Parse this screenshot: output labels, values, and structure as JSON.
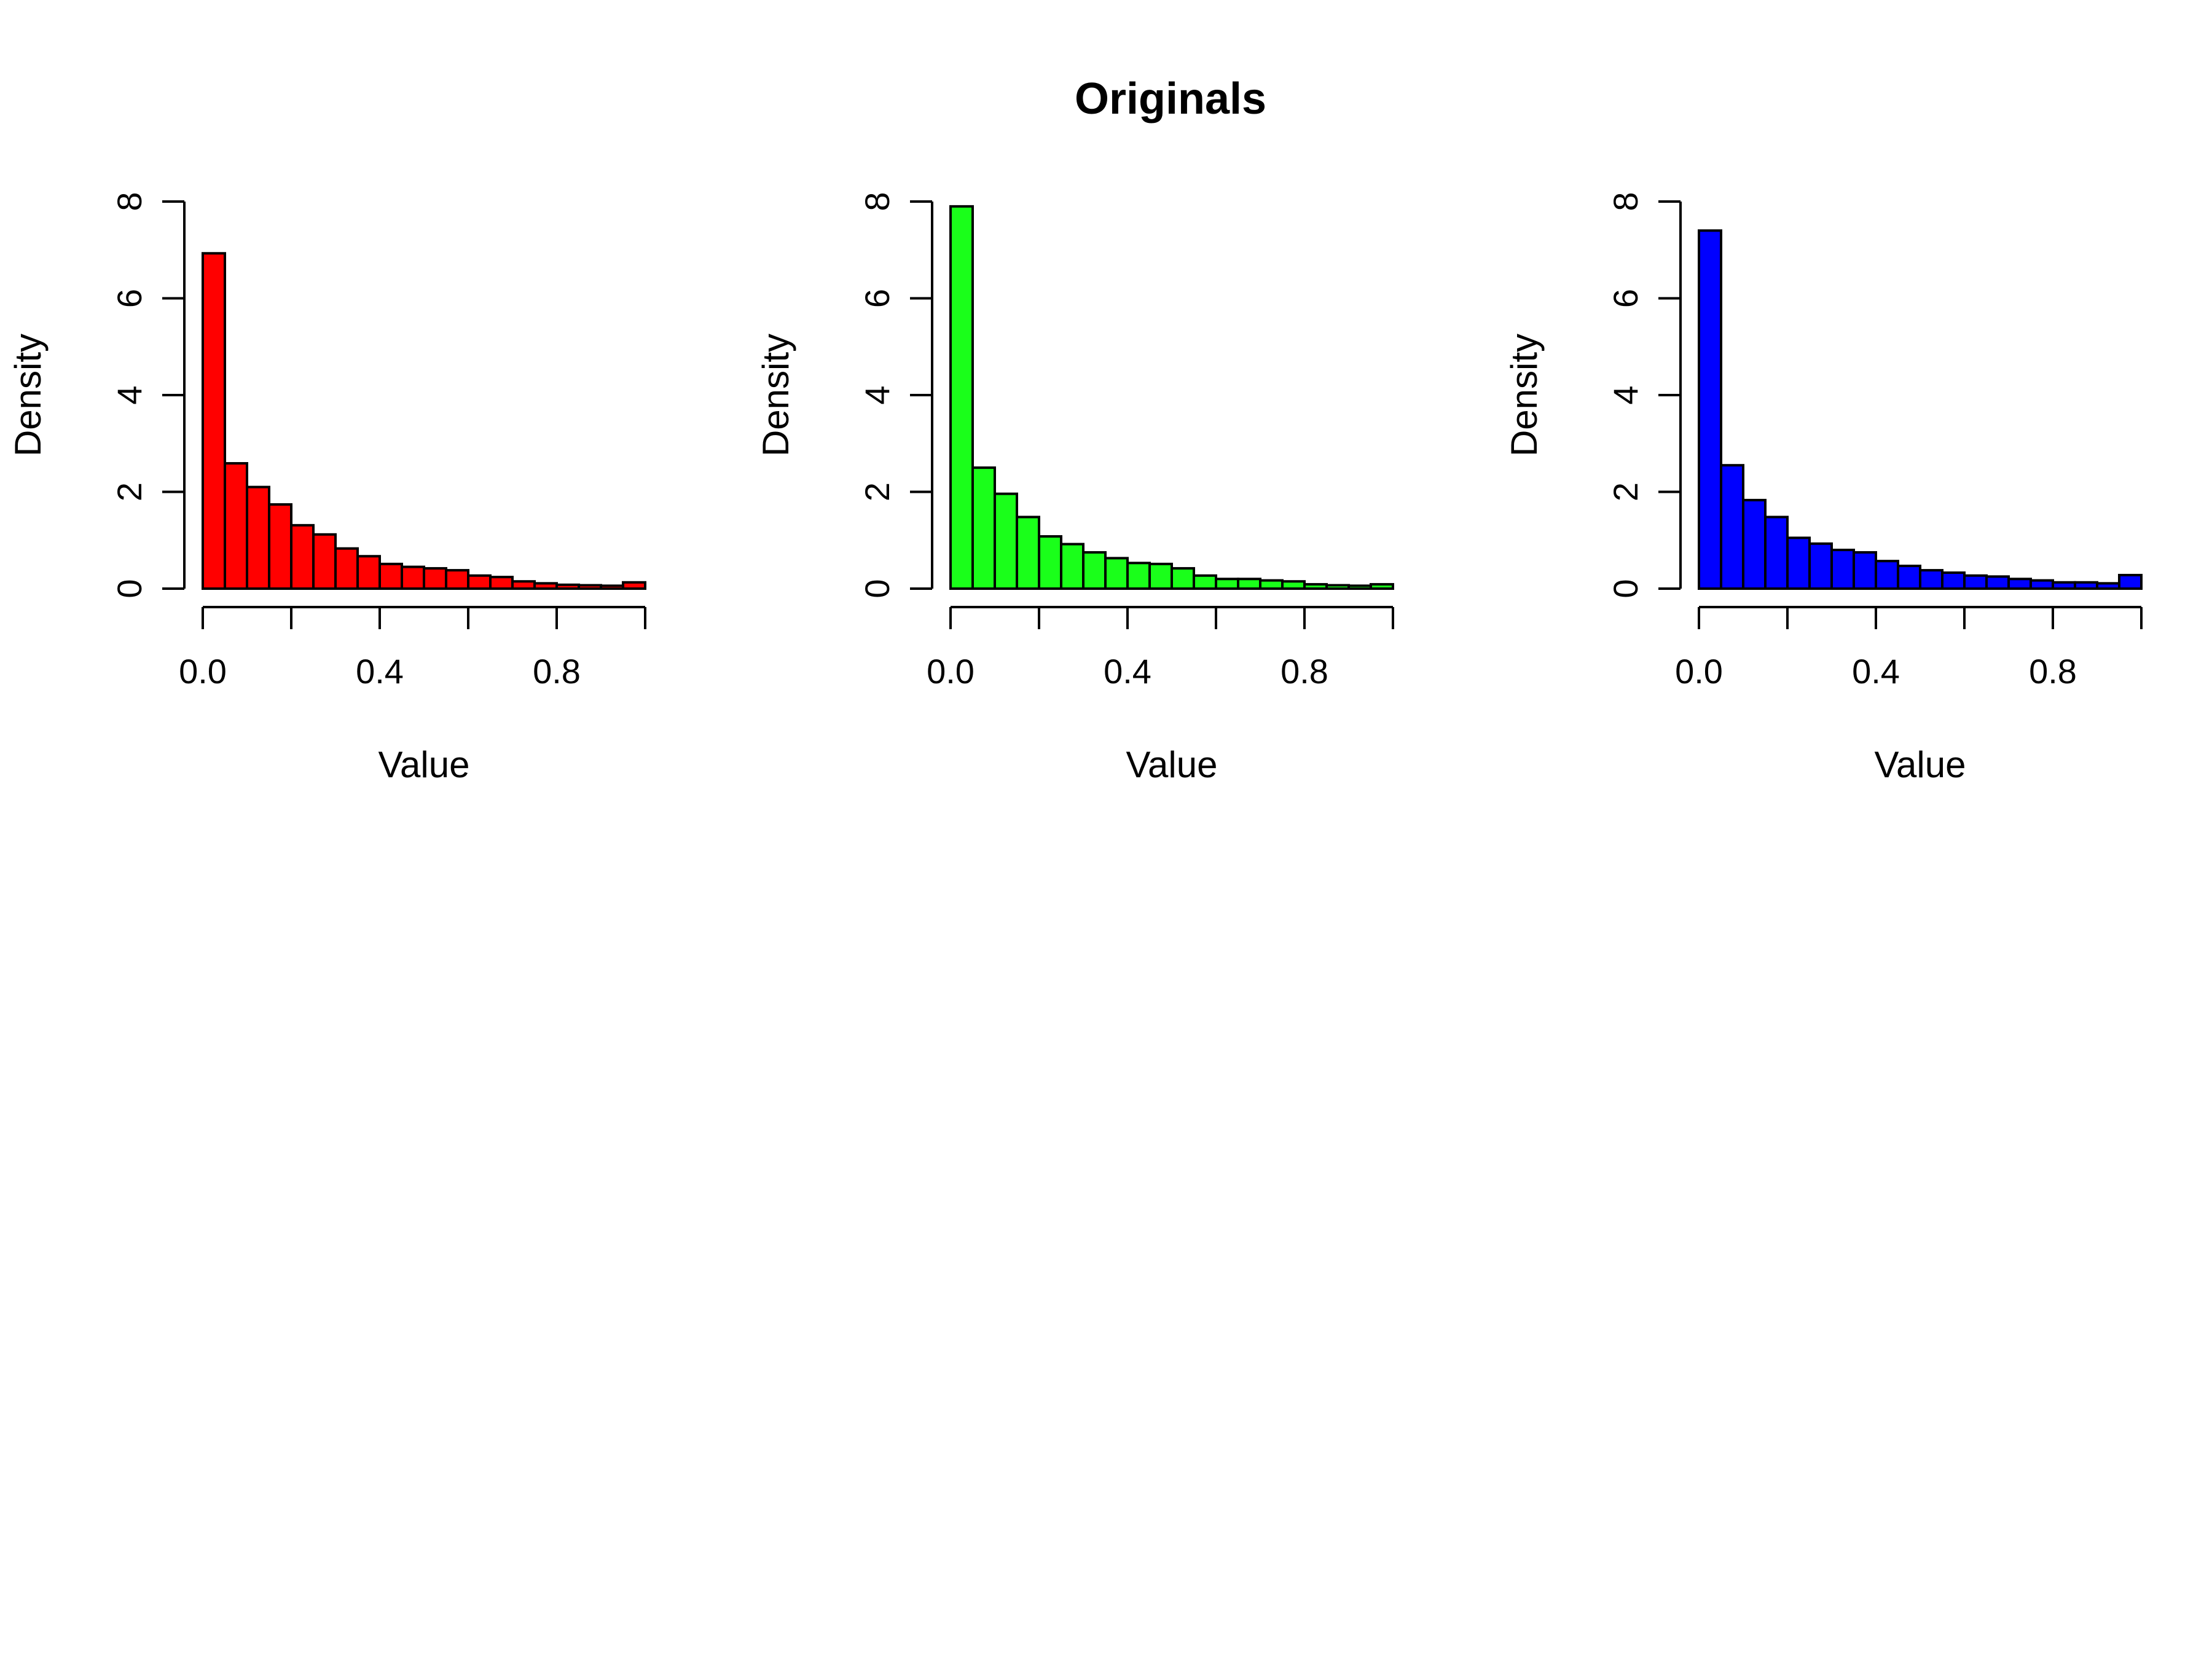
{
  "title": "Originals",
  "chart_data": [
    {
      "type": "bar",
      "color": "#ff0000",
      "xlabel": "Value",
      "ylabel": "Density",
      "xlim": [
        0,
        1
      ],
      "ylim": [
        0,
        8
      ],
      "xticks": [
        0,
        0.2,
        0.4,
        0.6,
        0.8,
        1.0
      ],
      "xtick_labels": [
        "0.0",
        "0.4",
        "0.8"
      ],
      "yticks": [
        0,
        2,
        4,
        6,
        8
      ],
      "ytick_labels": [
        "0",
        "2",
        "4",
        "6",
        "8"
      ],
      "bin_width": 0.05,
      "values": [
        6.93,
        2.59,
        2.1,
        1.74,
        1.31,
        1.12,
        0.83,
        0.67,
        0.51,
        0.45,
        0.42,
        0.38,
        0.27,
        0.24,
        0.15,
        0.11,
        0.08,
        0.07,
        0.06,
        0.13
      ]
    },
    {
      "type": "bar",
      "color": "#1aff1a",
      "xlabel": "Value",
      "ylabel": "Density",
      "xlim": [
        0,
        1
      ],
      "ylim": [
        0,
        8
      ],
      "xticks": [
        0,
        0.2,
        0.4,
        0.6,
        0.8,
        1.0
      ],
      "xtick_labels": [
        "0.0",
        "0.4",
        "0.8"
      ],
      "yticks": [
        0,
        2,
        4,
        6,
        8
      ],
      "ytick_labels": [
        "0",
        "2",
        "4",
        "6",
        "8"
      ],
      "bin_width": 0.05,
      "values": [
        7.9,
        2.5,
        1.96,
        1.48,
        1.08,
        0.92,
        0.75,
        0.63,
        0.53,
        0.51,
        0.42,
        0.27,
        0.2,
        0.2,
        0.17,
        0.15,
        0.09,
        0.07,
        0.06,
        0.09
      ]
    },
    {
      "type": "bar",
      "color": "#0000ff",
      "xlabel": "Value",
      "ylabel": "Density",
      "xlim": [
        0,
        1
      ],
      "ylim": [
        0,
        8
      ],
      "xticks": [
        0,
        0.2,
        0.4,
        0.6,
        0.8,
        1.0
      ],
      "xtick_labels": [
        "0.0",
        "0.4",
        "0.8"
      ],
      "yticks": [
        0,
        2,
        4,
        6,
        8
      ],
      "ytick_labels": [
        "0",
        "2",
        "4",
        "6",
        "8"
      ],
      "bin_width": 0.05,
      "values": [
        7.4,
        2.55,
        1.83,
        1.48,
        1.05,
        0.93,
        0.8,
        0.75,
        0.57,
        0.47,
        0.38,
        0.33,
        0.27,
        0.25,
        0.2,
        0.17,
        0.13,
        0.13,
        0.11,
        0.28
      ]
    }
  ]
}
